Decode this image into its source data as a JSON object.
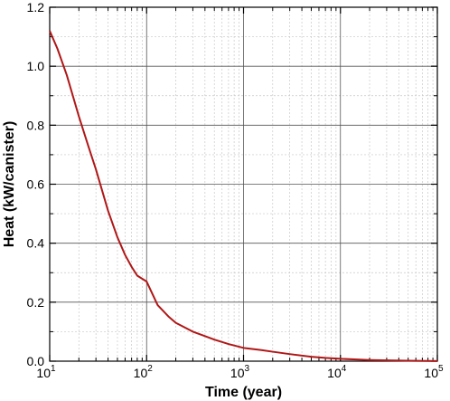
{
  "chart_data": {
    "type": "line",
    "title": "",
    "xlabel": "Time (year)",
    "ylabel": "Heat (kW/canister)",
    "x_scale": "log",
    "xlim": [
      10,
      100000
    ],
    "ylim": [
      0,
      1.2
    ],
    "x_ticks": [
      {
        "base": "10",
        "exp": "1"
      },
      {
        "base": "10",
        "exp": "2"
      },
      {
        "base": "10",
        "exp": "3"
      },
      {
        "base": "10",
        "exp": "4"
      },
      {
        "base": "10",
        "exp": "5"
      }
    ],
    "y_ticks": [
      "0.0",
      "0.2",
      "0.4",
      "0.6",
      "0.8",
      "1.0",
      "1.2"
    ],
    "grid": true,
    "line_color": "#b01717",
    "series": [
      {
        "x": [
          10,
          12,
          15,
          20,
          25,
          30,
          40,
          50,
          60,
          70,
          80,
          100,
          130,
          170,
          200,
          300,
          400,
          500,
          700,
          1000,
          1500,
          2000,
          3000,
          5000,
          7000,
          10000,
          20000,
          50000,
          100000
        ],
        "y": [
          1.12,
          1.06,
          0.97,
          0.83,
          0.73,
          0.65,
          0.51,
          0.42,
          0.36,
          0.32,
          0.29,
          0.27,
          0.19,
          0.15,
          0.13,
          0.1,
          0.085,
          0.073,
          0.058,
          0.045,
          0.038,
          0.032,
          0.024,
          0.015,
          0.011,
          0.008,
          0.004,
          0.0015,
          0.0005
        ]
      }
    ]
  }
}
